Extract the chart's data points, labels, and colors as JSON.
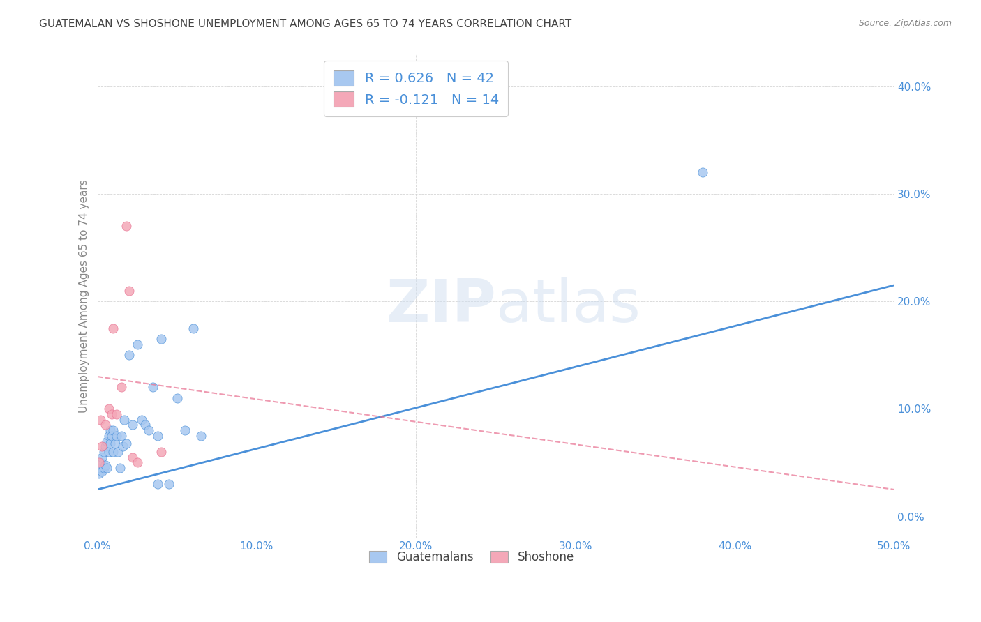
{
  "title": "GUATEMALAN VS SHOSHONE UNEMPLOYMENT AMONG AGES 65 TO 74 YEARS CORRELATION CHART",
  "source": "Source: ZipAtlas.com",
  "ylabel": "Unemployment Among Ages 65 to 74 years",
  "xlim": [
    0.0,
    0.5
  ],
  "ylim": [
    -0.02,
    0.43
  ],
  "xticks": [
    0.0,
    0.1,
    0.2,
    0.3,
    0.4,
    0.5
  ],
  "xticklabels": [
    "0.0%",
    "10.0%",
    "20.0%",
    "30.0%",
    "40.0%",
    "50.0%"
  ],
  "yticks": [
    0.0,
    0.1,
    0.2,
    0.3,
    0.4
  ],
  "yticklabels": [
    "0.0%",
    "10.0%",
    "20.0%",
    "30.0%",
    "40.0%"
  ],
  "guatemalan_color": "#a8c8f0",
  "shoshone_color": "#f4a8b8",
  "blue_line_color": "#4a90d9",
  "pink_line_color": "#e87090",
  "watermark_zip": "ZIP",
  "watermark_atlas": "atlas",
  "legend_r_guatemalan": "R = 0.626",
  "legend_n_guatemalan": "N = 42",
  "legend_r_shoshone": "R = -0.121",
  "legend_n_shoshone": "N = 14",
  "guatemalan_x": [
    0.001,
    0.002,
    0.002,
    0.003,
    0.003,
    0.004,
    0.004,
    0.005,
    0.005,
    0.006,
    0.006,
    0.007,
    0.007,
    0.008,
    0.008,
    0.009,
    0.01,
    0.01,
    0.011,
    0.012,
    0.013,
    0.014,
    0.015,
    0.016,
    0.017,
    0.018,
    0.02,
    0.022,
    0.025,
    0.028,
    0.03,
    0.032,
    0.035,
    0.038,
    0.038,
    0.04,
    0.045,
    0.05,
    0.055,
    0.06,
    0.065,
    0.38
  ],
  "guatemalan_y": [
    0.04,
    0.045,
    0.05,
    0.042,
    0.055,
    0.045,
    0.06,
    0.048,
    0.065,
    0.045,
    0.07,
    0.075,
    0.06,
    0.08,
    0.068,
    0.075,
    0.06,
    0.08,
    0.068,
    0.075,
    0.06,
    0.045,
    0.075,
    0.065,
    0.09,
    0.068,
    0.15,
    0.085,
    0.16,
    0.09,
    0.085,
    0.08,
    0.12,
    0.075,
    0.03,
    0.165,
    0.03,
    0.11,
    0.08,
    0.175,
    0.075,
    0.32
  ],
  "shoshone_x": [
    0.001,
    0.002,
    0.003,
    0.005,
    0.007,
    0.009,
    0.01,
    0.012,
    0.015,
    0.018,
    0.02,
    0.022,
    0.025,
    0.04
  ],
  "shoshone_y": [
    0.05,
    0.09,
    0.065,
    0.085,
    0.1,
    0.095,
    0.175,
    0.095,
    0.12,
    0.27,
    0.21,
    0.055,
    0.05,
    0.06
  ],
  "blue_trend_x": [
    0.0,
    0.5
  ],
  "blue_trend_y": [
    0.025,
    0.215
  ],
  "pink_trend_x": [
    0.0,
    0.5
  ],
  "pink_trend_y": [
    0.13,
    0.025
  ]
}
